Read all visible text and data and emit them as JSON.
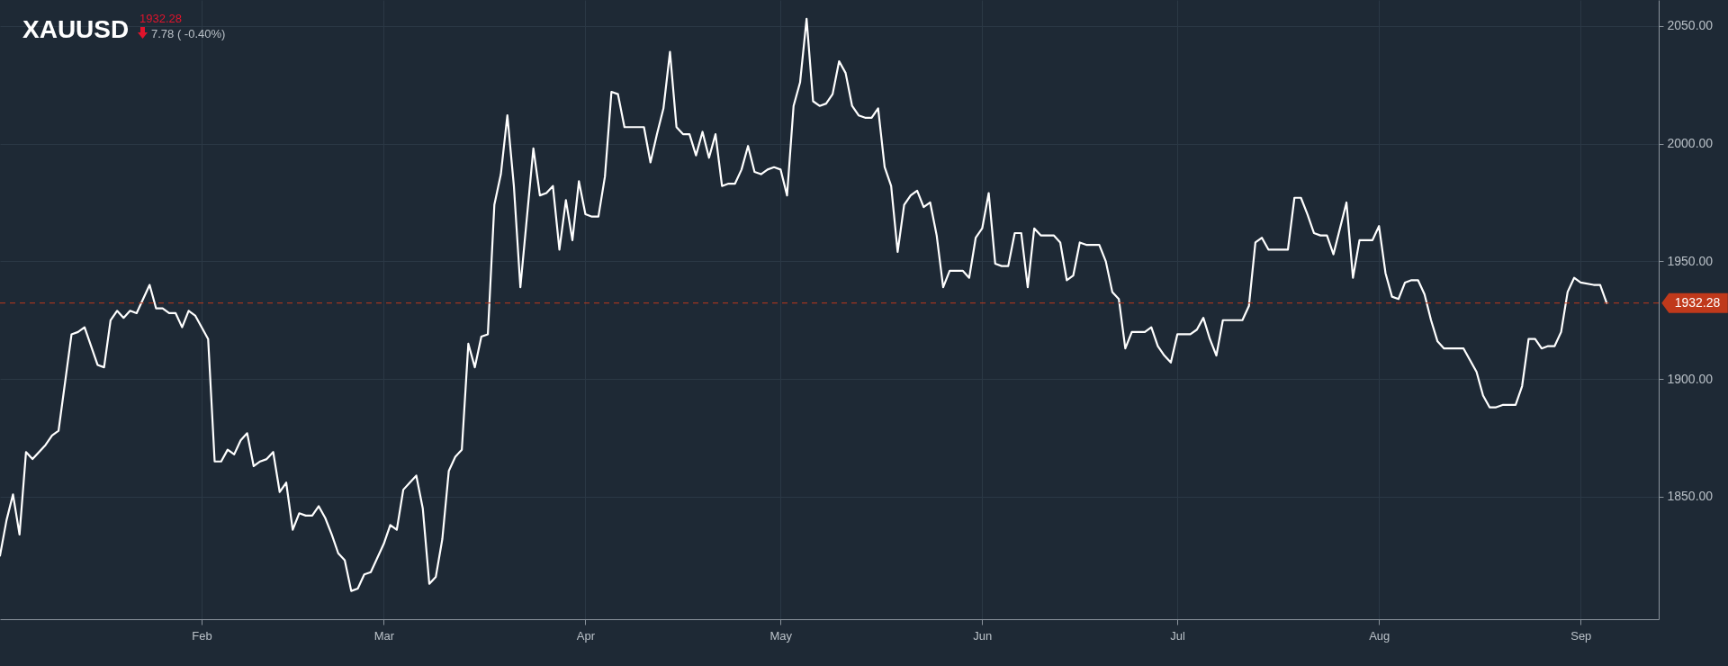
{
  "chart_data": {
    "type": "line",
    "title": "XAUUSD",
    "annotations": [
      "1932.28",
      "7.78 ( -0.40%)"
    ],
    "x": [
      "--01-01",
      "--01-02",
      "--01-03",
      "--01-04",
      "--01-05",
      "--01-06",
      "--01-08",
      "--01-09",
      "--01-10",
      "--01-12",
      "--01-13",
      "--01-14",
      "--01-16",
      "--01-17",
      "--01-18",
      "--01-19",
      "--01-20",
      "--01-21",
      "--01-22",
      "--01-24",
      "--01-25",
      "--01-26",
      "--01-27",
      "--01-28",
      "--01-29",
      "--01-30",
      "--01-31",
      "--02-02",
      "--02-03",
      "--02-04",
      "--02-05",
      "--02-06",
      "--02-07",
      "--02-08",
      "--02-09",
      "--02-10",
      "--02-11",
      "--02-12",
      "--02-13",
      "--02-14",
      "--02-15",
      "--02-16",
      "--02-17",
      "--02-18",
      "--02-19",
      "--02-20",
      "--02-21",
      "--02-22",
      "--02-23",
      "--02-24",
      "--02-25",
      "--02-26",
      "--02-27",
      "--03-01",
      "--03-02",
      "--03-03",
      "--03-04",
      "--03-05",
      "--03-06",
      "--03-07",
      "--03-08",
      "--03-09",
      "--03-10",
      "--03-11",
      "--03-12",
      "--03-13",
      "--03-14",
      "--03-15",
      "--03-16",
      "--03-17",
      "--03-18",
      "--03-19",
      "--03-20",
      "--03-21",
      "--03-22",
      "--03-24",
      "--03-25",
      "--03-26",
      "--03-27",
      "--03-28",
      "--03-29",
      "--03-30",
      "--03-31",
      "--04-01",
      "--04-02",
      "--04-03",
      "--04-04",
      "--04-05",
      "--04-06",
      "--04-07",
      "--04-08",
      "--04-10",
      "--04-11",
      "--04-12",
      "--04-13",
      "--04-14",
      "--04-15",
      "--04-16",
      "--04-17",
      "--04-18",
      "--04-19",
      "--04-20",
      "--04-21",
      "--04-22",
      "--04-23",
      "--04-24",
      "--04-25",
      "--04-26",
      "--04-27",
      "--04-28",
      "--04-29",
      "--04-30",
      "--05-01",
      "--05-02",
      "--05-03",
      "--05-04",
      "--05-05",
      "--05-06",
      "--05-07",
      "--05-08",
      "--05-09",
      "--05-10",
      "--05-11",
      "--05-12",
      "--05-13",
      "--05-14",
      "--05-15",
      "--05-16",
      "--05-17",
      "--05-18",
      "--05-19",
      "--05-20",
      "--05-21",
      "--05-22",
      "--05-23",
      "--05-24",
      "--05-25",
      "--05-26",
      "--05-27",
      "--05-29",
      "--05-30",
      "--05-31",
      "--06-01",
      "--06-02",
      "--06-03",
      "--06-04",
      "--06-05",
      "--06-06",
      "--06-07",
      "--06-08",
      "--06-09",
      "--06-10",
      "--06-12",
      "--06-13",
      "--06-14",
      "--06-15",
      "--06-16",
      "--06-17",
      "--06-18",
      "--06-19",
      "--06-20",
      "--06-21",
      "--06-22",
      "--06-23",
      "--06-24",
      "--06-25",
      "--06-26",
      "--06-27",
      "--06-28",
      "--06-29",
      "--06-30",
      "--07-01",
      "--07-03",
      "--07-04",
      "--07-05",
      "--07-06",
      "--07-07",
      "--07-08",
      "--07-09",
      "--07-11",
      "--07-12",
      "--07-13",
      "--07-14",
      "--07-15",
      "--07-17",
      "--07-18",
      "--07-19",
      "--07-20",
      "--07-21",
      "--07-22",
      "--07-23",
      "--07-24",
      "--07-25",
      "--07-27",
      "--07-28",
      "--07-29",
      "--07-31",
      "--08-01",
      "--08-02",
      "--08-03",
      "--08-04",
      "--08-05",
      "--08-06",
      "--08-07",
      "--08-08",
      "--08-09",
      "--08-10",
      "--08-11",
      "--08-12",
      "--08-13",
      "--08-14",
      "--08-16",
      "--08-17",
      "--08-18",
      "--08-19",
      "--08-20",
      "--08-22",
      "--08-23",
      "--08-24",
      "--08-25",
      "--08-26",
      "--08-27",
      "--08-28",
      "--08-29",
      "--08-30",
      "--08-31",
      "--09-01",
      "--09-03",
      "--09-04",
      "--09-05"
    ],
    "series": [
      {
        "color": "#ffffff",
        "values": [
          1825,
          1840,
          1851,
          1834,
          1869,
          1866,
          1872,
          1876,
          1878,
          1919,
          1920,
          1922,
          1906,
          1905,
          1925,
          1929,
          1926,
          1929,
          1928,
          1940,
          1930,
          1930,
          1928,
          1928,
          1922,
          1929,
          1927,
          1917,
          1865,
          1865,
          1870,
          1868,
          1874,
          1877,
          1863,
          1865,
          1866,
          1869,
          1852,
          1856,
          1836,
          1843,
          1842,
          1842,
          1846,
          1841,
          1834,
          1826,
          1823,
          1810,
          1811,
          1817,
          1818,
          1830,
          1838,
          1836,
          1853,
          1856,
          1859,
          1845,
          1813,
          1816,
          1832,
          1861,
          1867,
          1870,
          1915,
          1905,
          1918,
          1919,
          1974,
          1987,
          2012,
          1982,
          1939,
          1998,
          1978,
          1979,
          1982,
          1955,
          1976,
          1959,
          1984,
          1970,
          1969,
          1969,
          1986,
          2022,
          2021,
          2007,
          2007,
          2007,
          1992,
          2004,
          2015,
          2039,
          2007,
          2004,
          2004,
          1995,
          2005,
          1994,
          2004,
          1982,
          1983,
          1983,
          1989,
          1999,
          1988,
          1987,
          1989,
          1990,
          1989,
          1978,
          2016,
          2026,
          2053,
          2018,
          2016,
          2017,
          2021,
          2035,
          2030,
          2016,
          2012,
          2011,
          2011,
          2015,
          1990,
          1982,
          1954,
          1974,
          1978,
          1980,
          1973,
          1975,
          1961,
          1939,
          1946,
          1946,
          1943,
          1960,
          1964,
          1979,
          1949,
          1948,
          1948,
          1962,
          1962,
          1939,
          1964,
          1961,
          1961,
          1958,
          1942,
          1944,
          1958,
          1957,
          1957,
          1957,
          1950,
          1937,
          1934,
          1913,
          1920,
          1920,
          1920,
          1922,
          1914,
          1910,
          1907,
          1919,
          1919,
          1921,
          1926,
          1917,
          1910,
          1925,
          1925,
          1925,
          1931,
          1958,
          1960,
          1955,
          1955,
          1955,
          1977,
          1977,
          1970,
          1962,
          1961,
          1961,
          1953,
          1975,
          1943,
          1959,
          1959,
          1965,
          1945,
          1935,
          1934,
          1941,
          1942,
          1942,
          1936,
          1925,
          1916,
          1913,
          1913,
          1913,
          1913,
          1903,
          1893,
          1888,
          1888,
          1889,
          1889,
          1897,
          1917,
          1917,
          1913,
          1914,
          1914,
          1920,
          1937,
          1943,
          1941,
          1940,
          1940,
          1932.28
        ]
      }
    ],
    "xlim": [
      "--01-01",
      "--09-13"
    ],
    "xticks": [
      {
        "value": "--02-01",
        "label": "Feb"
      },
      {
        "value": "--03-01",
        "label": "Mar"
      },
      {
        "value": "--04-01",
        "label": "Apr"
      },
      {
        "value": "--05-01",
        "label": "May"
      },
      {
        "value": "--06-01",
        "label": "Jun"
      },
      {
        "value": "--07-01",
        "label": "Jul"
      },
      {
        "value": "--08-01",
        "label": "Aug"
      },
      {
        "value": "--09-01",
        "label": "Sep"
      }
    ],
    "ylim": [
      1798,
      2061
    ],
    "yticks": [
      {
        "value": 1850,
        "label": "1850.00"
      },
      {
        "value": 1900,
        "label": "1900.00"
      },
      {
        "value": 1950,
        "label": "1950.00"
      },
      {
        "value": 2000,
        "label": "2000.00"
      },
      {
        "value": 2050,
        "label": "2050.00"
      }
    ],
    "grid": true,
    "ref_lines": [
      {
        "axis": "y",
        "value": 1932.28,
        "label": "1932.28",
        "color": "#c0391b",
        "line_style": "dashed"
      }
    ]
  }
}
